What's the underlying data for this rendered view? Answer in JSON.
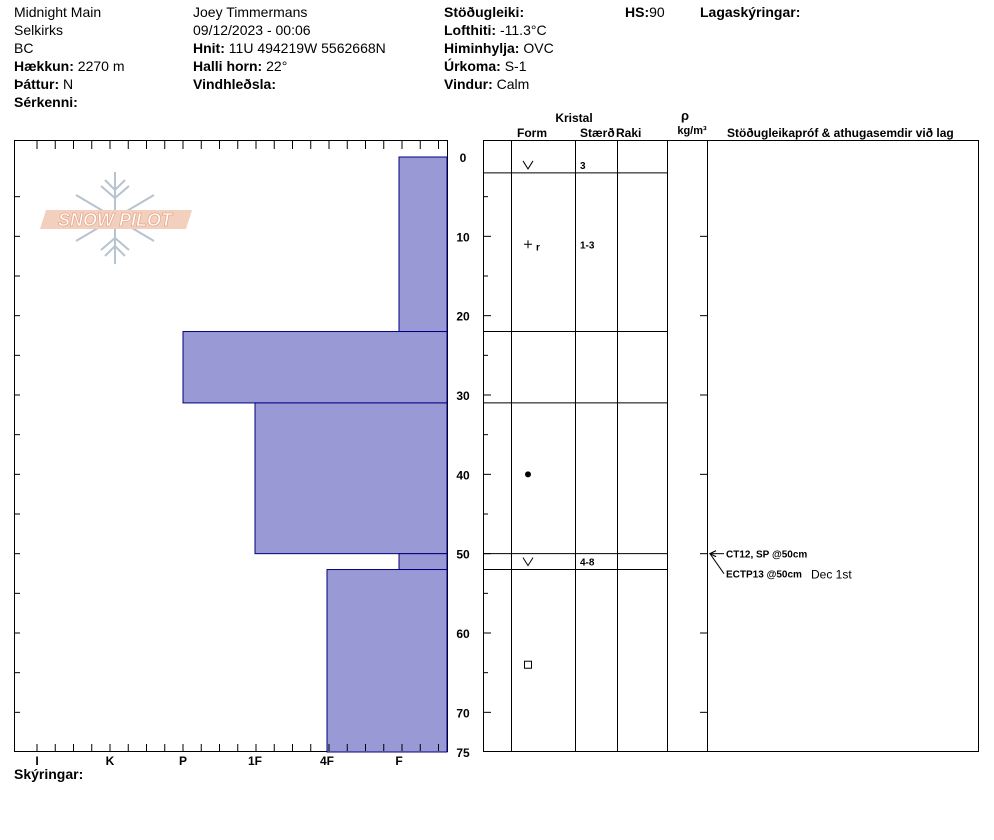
{
  "header": {
    "col1": {
      "location": "Midnight Main",
      "range": "Selkirks",
      "region": "BC",
      "elevation_label": "Hækkun:",
      "elevation_value": "2270 m",
      "aspect_label": "Þáttur:",
      "aspect_value": "N",
      "specifics_label": "Sérkenni:"
    },
    "col2": {
      "observer": "Joey Timmermans",
      "datetime": "09/12/2023 - 00:06",
      "coords_label": "Hnit:",
      "coords_value": "11U 494219W 5562668N",
      "slope_label": "Halli horn:",
      "slope_value": "22°",
      "wind_loading_label": "Vindhleðsla:"
    },
    "col3": {
      "stability_label": "Stöðugleiki:",
      "air_temp_label": "Lofthiti:",
      "air_temp_value": "-11.3°C",
      "sky_label": "Himinhylja:",
      "sky_value": "OVC",
      "precip_label": "Úrkoma:",
      "precip_value": "S-1",
      "wind_label": "Vindur:",
      "wind_value": "Calm"
    },
    "hs_label": "HS:",
    "hs_value": "90",
    "layer_notes_label": "Lagaskýringar:"
  },
  "logo_text": "SNOW PILOT",
  "table_headers": {
    "crystal": "Kristal",
    "form": "Form",
    "size": "Stærð",
    "moisture": "Raki",
    "rho": "ρ",
    "density_unit": "kg/m³",
    "stability_notes": "Stöðugleikapróf & athugasemdir við lag"
  },
  "footer": {
    "notes_label": "Skýringar:"
  },
  "chart_data": {
    "type": "bar",
    "orientation": "horizontal-step",
    "x_categories": [
      "I",
      "K",
      "P",
      "1F",
      "4F",
      "F"
    ],
    "depth_ticks": [
      "0",
      "10",
      "20",
      "30",
      "40",
      "50",
      "60",
      "70",
      "75"
    ],
    "ylim": [
      0,
      75
    ],
    "hardness_layers": [
      {
        "top": 0,
        "bottom": 22,
        "hardness": "F"
      },
      {
        "top": 22,
        "bottom": 31,
        "hardness": "P"
      },
      {
        "top": 31,
        "bottom": 50,
        "hardness": "1F"
      },
      {
        "top": 50,
        "bottom": 52,
        "hardness": "F"
      },
      {
        "top": 52,
        "bottom": 75,
        "hardness": "4F"
      }
    ],
    "layer_boundaries": [
      2,
      22,
      31,
      50,
      52
    ],
    "crystals": [
      {
        "depth": 1,
        "form": "v",
        "size": "3"
      },
      {
        "depth": 11,
        "form": "+r",
        "size": "1-3"
      },
      {
        "depth": 40,
        "form": "dot",
        "size": ""
      },
      {
        "depth": 51,
        "form": "v",
        "size": "4-8"
      },
      {
        "depth": 64,
        "form": "square",
        "size": ""
      }
    ],
    "tests": [
      {
        "text": "CT12, SP @50cm",
        "depth": 50
      },
      {
        "text": "ECTP13 @50cm",
        "date": "Dec 1st",
        "depth": 50
      }
    ],
    "colors": {
      "fill": "#9999d6",
      "stroke": "#00007f"
    }
  }
}
